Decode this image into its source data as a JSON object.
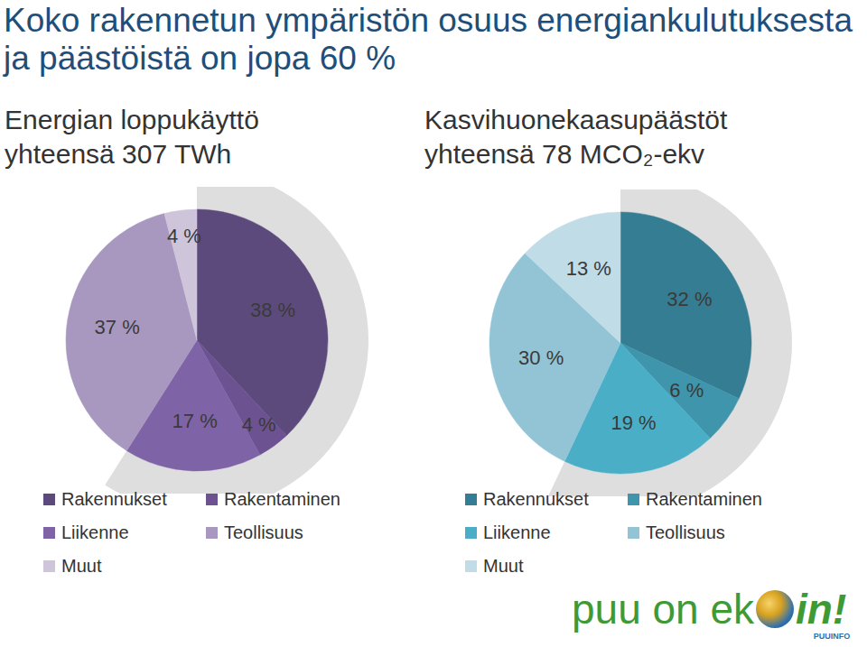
{
  "title": "Koko rakennetun ympäristön osuus energian­kulutuksesta ja päästöistä on jopa 60 %",
  "chart_data": [
    {
      "type": "pie",
      "title": "Energian loppukäyttö",
      "subtitle": "yhteensä 307 TWh",
      "categories": [
        "Rakennukset",
        "Rakentaminen",
        "Liikenne",
        "Teollisuus",
        "Muut"
      ],
      "values": [
        38,
        4,
        17,
        37,
        4
      ],
      "value_labels": [
        "38 %",
        "4 %",
        "17 %",
        "37 %",
        "4 %"
      ],
      "colors": [
        "#5d4a7c",
        "#6c5290",
        "#7f63a7",
        "#a898c0",
        "#cec5db"
      ],
      "data_labels": true,
      "legend": "bottom"
    },
    {
      "type": "pie",
      "title": "Kasvihuonekaasupäästöt",
      "subtitle": "yhteensä 78 MCO₂-ekv",
      "categories": [
        "Rakennukset",
        "Rakentaminen",
        "Liikenne",
        "Teollisuus",
        "Muut"
      ],
      "values": [
        32,
        6,
        19,
        30,
        13
      ],
      "value_labels": [
        "32 %",
        "6 %",
        "19 %",
        "30 %",
        "13 %"
      ],
      "colors": [
        "#357d92",
        "#3f96ac",
        "#4aafc6",
        "#93c4d6",
        "#c0dce7"
      ],
      "data_labels": true,
      "legend": "bottom"
    }
  ],
  "logo": {
    "text": [
      "puu on ek",
      "in!"
    ],
    "brand": "PUUINFO"
  }
}
